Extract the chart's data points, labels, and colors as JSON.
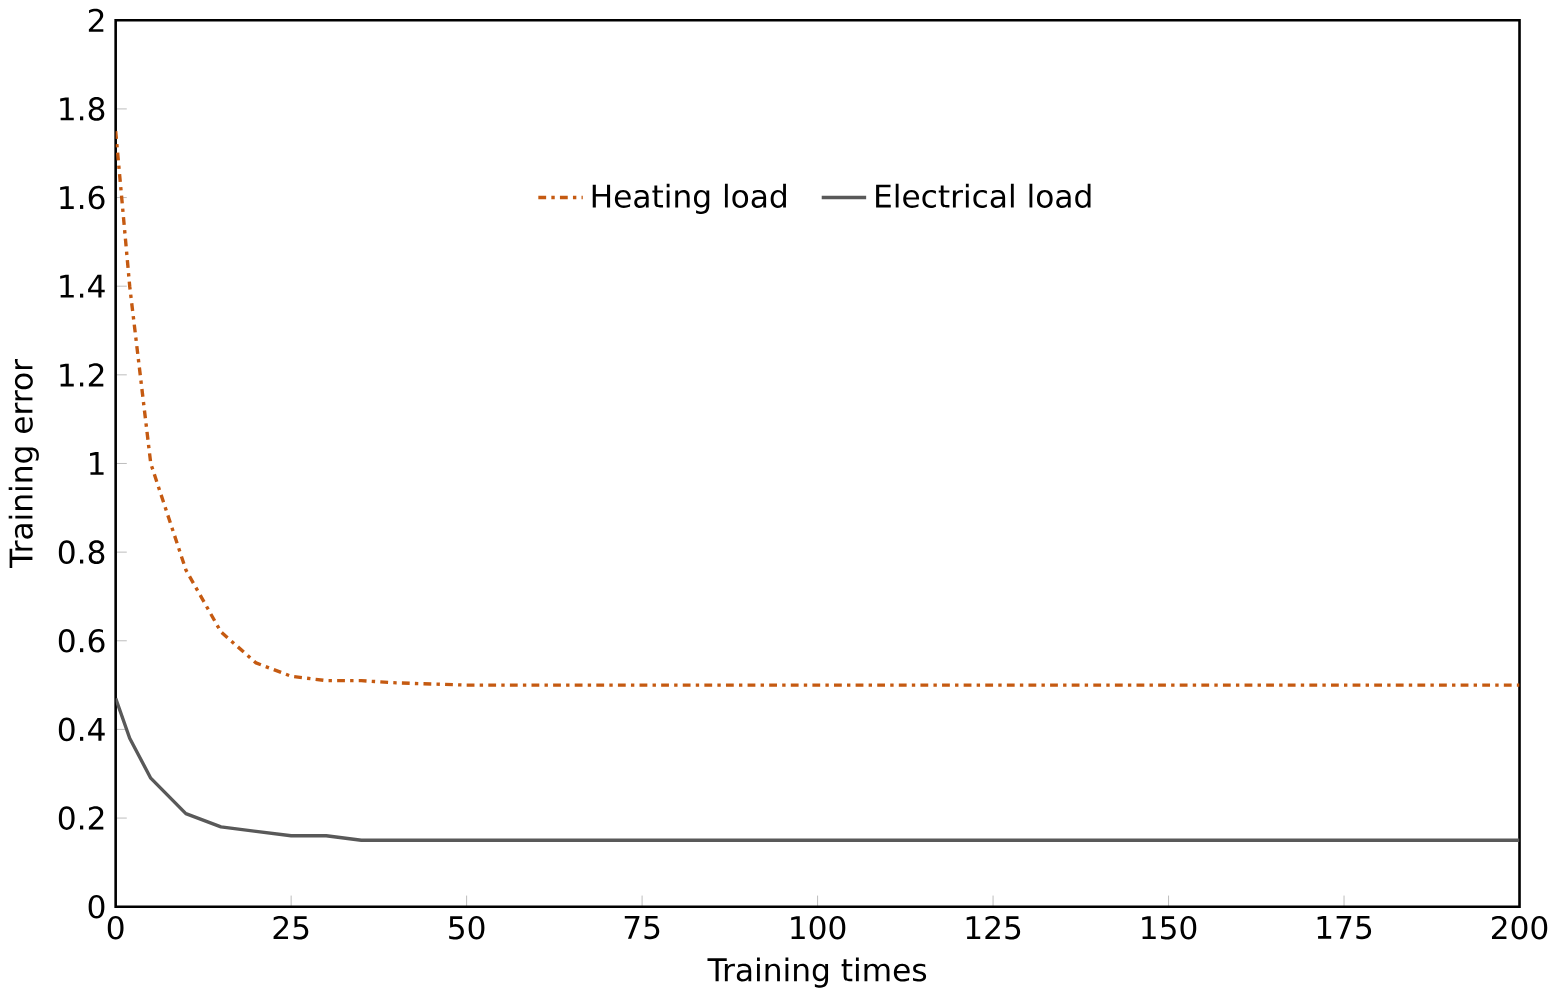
{
  "chart_data": {
    "type": "line",
    "xlabel": "Training times",
    "ylabel": "Training error",
    "xlim": [
      0,
      200
    ],
    "xticks": [
      0,
      25,
      50,
      75,
      100,
      125,
      150,
      175,
      200
    ],
    "ylim": [
      0,
      2
    ],
    "yticks": [
      0,
      0.2,
      0.4,
      0.6,
      0.8,
      1,
      1.2,
      1.4,
      1.6,
      1.8,
      2
    ],
    "x": [
      0,
      2,
      5,
      10,
      15,
      20,
      25,
      30,
      35,
      40,
      50,
      200
    ],
    "grid": false,
    "legend": "top",
    "marker": "none",
    "series": [
      {
        "name": "Heating load",
        "color": "#c55a11",
        "line_style": "dashdot",
        "values": [
          1.75,
          1.4,
          1.0,
          0.76,
          0.62,
          0.55,
          0.52,
          0.51,
          0.51,
          0.505,
          0.5,
          0.5
        ]
      },
      {
        "name": "Electrical load",
        "color": "#595959",
        "line_style": "solid",
        "values": [
          0.47,
          0.38,
          0.29,
          0.21,
          0.18,
          0.17,
          0.16,
          0.16,
          0.15,
          0.15,
          0.15,
          0.15
        ]
      }
    ]
  }
}
